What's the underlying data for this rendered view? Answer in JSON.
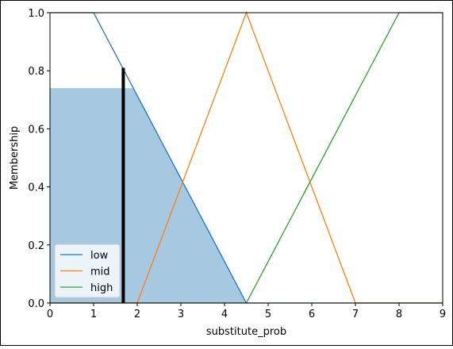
{
  "chart_data": {
    "type": "line",
    "title": "",
    "xlabel": "substitute_prob",
    "ylabel": "Membership",
    "xlim": [
      0,
      9
    ],
    "ylim": [
      0,
      1.0
    ],
    "x_ticks": [
      0,
      1,
      2,
      3,
      4,
      5,
      6,
      7,
      8,
      9
    ],
    "y_ticks": [
      0.0,
      0.2,
      0.4,
      0.6,
      0.8,
      1.0
    ],
    "x_tick_labels": [
      "0",
      "1",
      "2",
      "3",
      "4",
      "5",
      "6",
      "7",
      "8",
      "9"
    ],
    "y_tick_labels": [
      "0.0",
      "0.2",
      "0.4",
      "0.6",
      "0.8",
      "1.0"
    ],
    "grid": false,
    "legend_position": "lower-left",
    "series": [
      {
        "name": "low",
        "color": "#1f77b4",
        "x": [
          0,
          1,
          4.5,
          9
        ],
        "y": [
          1,
          1,
          0,
          0
        ]
      },
      {
        "name": "mid",
        "color": "#ff7f0e",
        "x": [
          0,
          2,
          4.5,
          7,
          9
        ],
        "y": [
          0,
          0,
          1,
          0,
          0
        ]
      },
      {
        "name": "high",
        "color": "#2ca02c",
        "x": [
          0,
          4.5,
          8,
          9
        ],
        "y": [
          0,
          0,
          1,
          1
        ]
      }
    ],
    "activation": {
      "color": "#a6c8e0",
      "clip_level": 0.74,
      "x": [
        0,
        1.91,
        4.5
      ],
      "y": [
        0.74,
        0.74,
        0
      ]
    },
    "marker": {
      "x": 1.68,
      "y": 0.81,
      "color": "#000000"
    }
  }
}
